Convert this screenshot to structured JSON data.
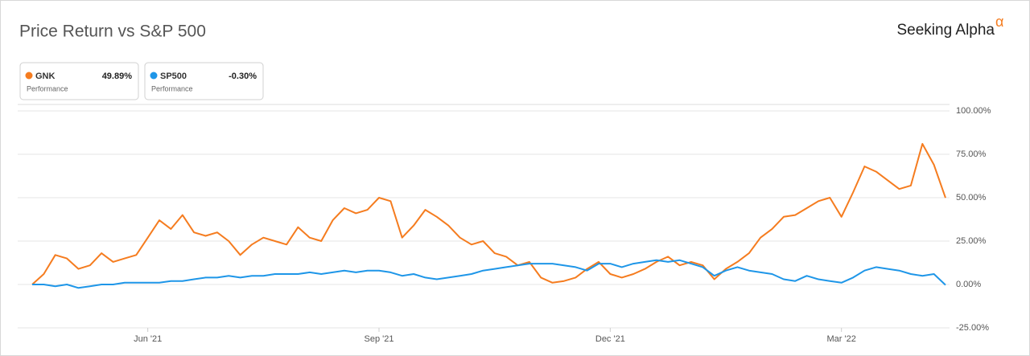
{
  "chart_data": {
    "type": "line",
    "title": "Price Return vs S&P 500",
    "brand": "Seeking Alpha",
    "brand_mark": "α",
    "categories": [
      null,
      null,
      null,
      null,
      null,
      null,
      null,
      null,
      null,
      null,
      "Jun '21",
      null,
      null,
      null,
      null,
      null,
      null,
      null,
      null,
      null,
      null,
      null,
      null,
      null,
      null,
      null,
      null,
      null,
      null,
      null,
      "Sep '21",
      null,
      null,
      null,
      null,
      null,
      null,
      null,
      null,
      null,
      null,
      null,
      null,
      null,
      null,
      null,
      null,
      null,
      null,
      null,
      "Dec '21",
      null,
      null,
      null,
      null,
      null,
      null,
      null,
      null,
      null,
      null,
      null,
      null,
      null,
      null,
      null,
      null,
      null,
      null,
      null,
      "Mar '22",
      null,
      null,
      null,
      null,
      null,
      null,
      null,
      null,
      null
    ],
    "series": [
      {
        "name": "GNK",
        "color": "#f57c1f",
        "legend_value": "49.89%",
        "legend_caption": "Performance",
        "values": [
          0,
          6,
          17,
          15,
          9,
          11,
          18,
          13,
          15,
          17,
          27,
          37,
          32,
          40,
          30,
          28,
          30,
          25,
          17,
          23,
          27,
          25,
          23,
          33,
          27,
          25,
          37,
          44,
          41,
          43,
          50,
          48,
          27,
          34,
          43,
          39,
          34,
          27,
          23,
          25,
          18,
          16,
          11,
          13,
          4,
          1,
          2,
          4,
          9,
          13,
          6,
          4,
          6,
          9,
          13,
          16,
          11,
          13,
          11,
          3,
          9,
          13,
          18,
          27,
          32,
          39,
          40,
          44,
          48,
          50,
          39,
          53,
          68,
          65,
          60,
          55,
          57,
          81,
          69,
          49.89
        ]
      },
      {
        "name": "SP500",
        "color": "#1e96e8",
        "legend_value": "-0.30%",
        "legend_caption": "Performance",
        "values": [
          0,
          0,
          -1,
          0,
          -2,
          -1,
          0,
          0,
          1,
          1,
          1,
          1,
          2,
          2,
          3,
          4,
          4,
          5,
          4,
          5,
          5,
          6,
          6,
          6,
          7,
          6,
          7,
          8,
          7,
          8,
          8,
          7,
          5,
          6,
          4,
          3,
          4,
          5,
          6,
          8,
          9,
          10,
          11,
          12,
          12,
          12,
          11,
          10,
          8,
          12,
          12,
          10,
          12,
          13,
          14,
          13,
          14,
          12,
          10,
          5,
          8,
          10,
          8,
          7,
          6,
          3,
          2,
          5,
          3,
          2,
          1,
          4,
          8,
          10,
          9,
          8,
          6,
          5,
          6,
          -0.3
        ]
      }
    ],
    "ylim": [
      -25,
      100
    ],
    "yticks": [
      {
        "value": 100,
        "label": "100.00%"
      },
      {
        "value": 75,
        "label": "75.00%"
      },
      {
        "value": 50,
        "label": "50.00%"
      },
      {
        "value": 25,
        "label": "25.00%"
      },
      {
        "value": 0,
        "label": "0.00%"
      },
      {
        "value": -25,
        "label": "-25.00%"
      }
    ],
    "grid": true
  }
}
